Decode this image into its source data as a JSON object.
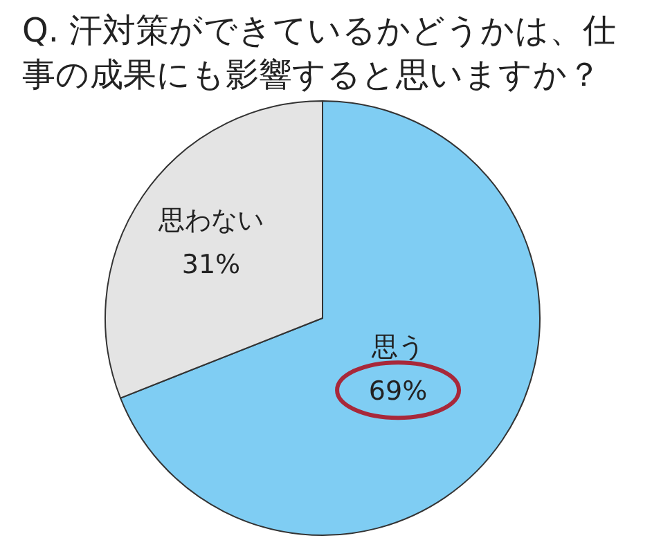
{
  "chart_data": {
    "type": "pie",
    "title": "Q. 汗対策ができているかどうかは、仕事の成果にも影響すると思いますか？",
    "categories": [
      "思う",
      "思わない"
    ],
    "values": [
      69,
      31
    ],
    "value_labels": [
      "69%",
      "31%"
    ],
    "colors": [
      "#7fcdf3",
      "#e4e4e4"
    ]
  }
}
